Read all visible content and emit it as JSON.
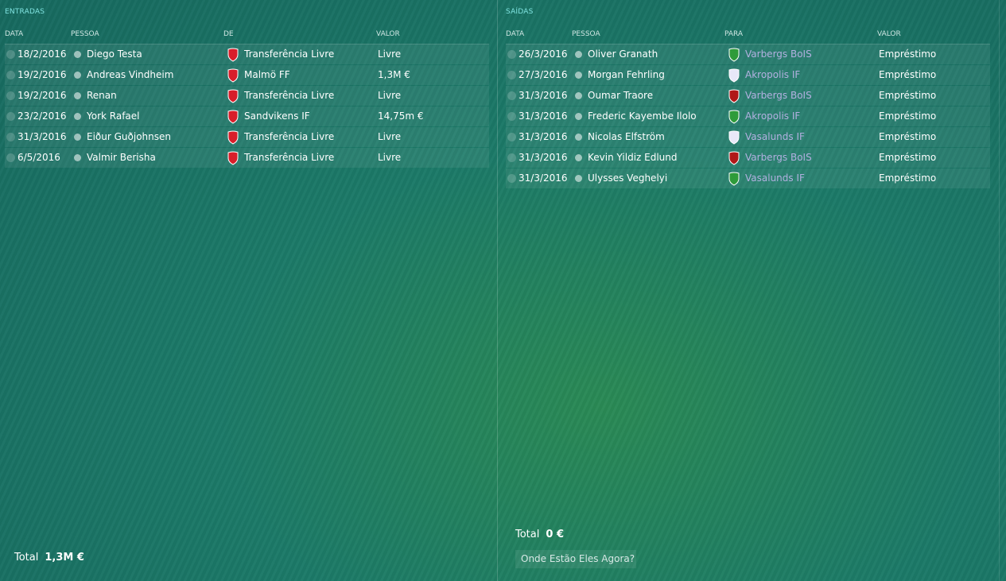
{
  "entradas": {
    "title": "ENTRADAS",
    "columns": [
      "DATA",
      "PESSOA",
      "DE",
      "VALOR"
    ],
    "rows": [
      [
        "18/2/2016",
        "Diego Testa",
        "Transferência Livre",
        "Livre"
      ],
      [
        "19/2/2016",
        "Andreas Vindheim",
        "Malmö FF",
        "1,3M €"
      ],
      [
        "19/2/2016",
        "Renan",
        "Transferência Livre",
        "Livre"
      ],
      [
        "23/2/2016",
        "York Rafael",
        "Sandvikens IF",
        "14,75m €"
      ],
      [
        "31/3/2016",
        "Eiður Guðjohnsen",
        "Transferência Livre",
        "Livre"
      ],
      [
        "6/5/2016",
        "Valmir Berisha",
        "Transferência Livre",
        "Livre"
      ]
    ],
    "total_label": "Total",
    "total_value": "1,3M €"
  },
  "saidas": {
    "title": "SAÍDAS",
    "columns": [
      "DATA",
      "PESSOA",
      "PARA",
      "VALOR"
    ],
    "rows": [
      [
        "26/3/2016",
        "Oliver Granath",
        "Varbergs BoIS",
        "Empréstimo"
      ],
      [
        "27/3/2016",
        "Morgan Fehrling",
        "Akropolis IF",
        "Empréstimo"
      ],
      [
        "31/3/2016",
        "Oumar Traore",
        "Varbergs BoIS",
        "Empréstimo"
      ],
      [
        "31/3/2016",
        "Frederic Kayembe Ilolo",
        "Akropolis IF",
        "Empréstimo"
      ],
      [
        "31/3/2016",
        "Nicolas Elfström",
        "Vasalunds IF",
        "Empréstimo"
      ],
      [
        "31/3/2016",
        "Kevin Yildiz Edlund",
        "Varbergs BoIS",
        "Empréstimo"
      ],
      [
        "31/3/2016",
        "Ulysses Veghelyi",
        "Vasalunds IF",
        "Empréstimo"
      ]
    ],
    "total_label": "Total",
    "total_value": "0 €",
    "button": "Onde Estão Eles Agora?"
  }
}
